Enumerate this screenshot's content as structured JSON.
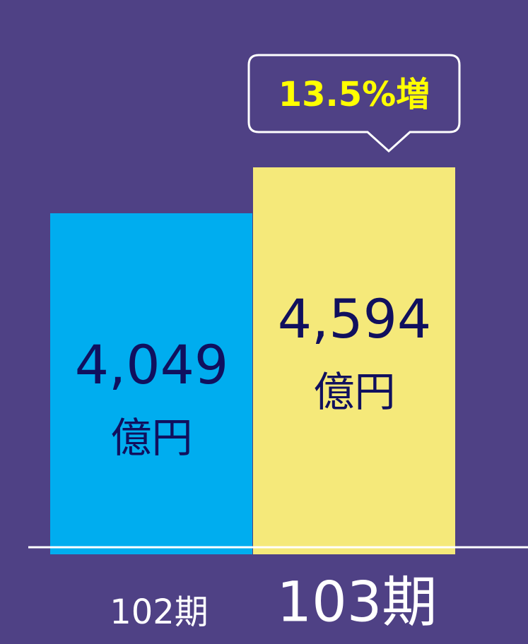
{
  "chart_data": {
    "type": "bar",
    "categories": [
      "102期",
      "103期"
    ],
    "values": [
      4049,
      4594
    ],
    "value_labels": [
      "4,049",
      "4,594"
    ],
    "unit": "億円",
    "colors": [
      "#00adef",
      "#f5e97a"
    ],
    "annotation": "13.5%増"
  }
}
